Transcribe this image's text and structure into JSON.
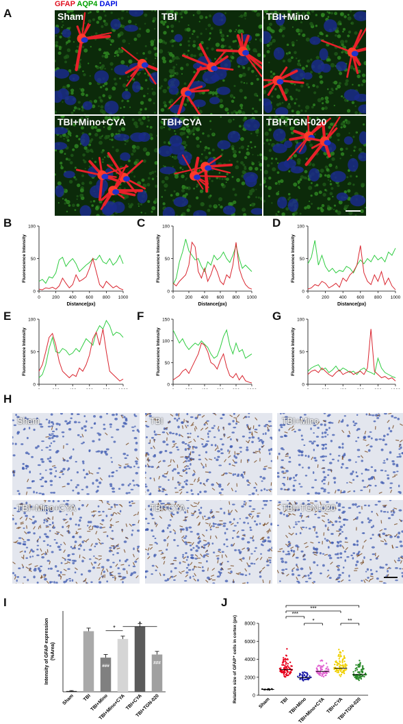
{
  "panel_letters": {
    "A": "A",
    "B": "B",
    "C": "C",
    "D": "D",
    "E": "E",
    "F": "F",
    "G": "G",
    "H": "H",
    "I": "I",
    "J": "J"
  },
  "legend": {
    "gfap": "GFAP",
    "aqp4": "AQP4",
    "dapi": "DAPI",
    "gfap_color": "#e01020",
    "aqp4_color": "#00a000",
    "dapi_color": "#0010e0"
  },
  "if_labels": [
    "Sham",
    "TBI",
    "TBI+Mino",
    "TBI+Mino+CYA",
    "TBI+CYA",
    "TBI+TGN-020"
  ],
  "ihc_labels": [
    "Sham",
    "TBI",
    "TBI+Mino",
    "TBI+Mino+CYA",
    "TBI+CYA",
    "TBI+TGN-020"
  ],
  "line_plot_common": {
    "ylabel": "Fluorescence Intensity",
    "xlabel": "Distance(px)",
    "xticks": [
      "0",
      "200",
      "400",
      "600",
      "800",
      "1000"
    ]
  },
  "chart_data": [
    {
      "panel": "B",
      "type": "line",
      "xlabel": "Distance(px)",
      "ylabel": "Fluorescence Intensity",
      "xlim": [
        0,
        1000
      ],
      "ylim": [
        0,
        100
      ],
      "yticks": [
        "0",
        "50",
        "100"
      ],
      "x": [
        0,
        40,
        80,
        120,
        160,
        200,
        240,
        280,
        320,
        360,
        400,
        440,
        480,
        520,
        560,
        600,
        640,
        680,
        720,
        760,
        800,
        840,
        880,
        920,
        960,
        1000
      ],
      "series": [
        {
          "color": "#2ecc40",
          "values": [
            15,
            18,
            12,
            22,
            20,
            28,
            48,
            52,
            38,
            45,
            50,
            42,
            30,
            35,
            40,
            44,
            50,
            48,
            55,
            45,
            42,
            50,
            40,
            45,
            55,
            42
          ]
        },
        {
          "color": "#d9232d",
          "values": [
            3,
            2,
            5,
            4,
            6,
            3,
            8,
            20,
            12,
            5,
            10,
            25,
            15,
            18,
            22,
            35,
            50,
            30,
            10,
            5,
            15,
            10,
            5,
            8,
            4,
            2
          ]
        }
      ]
    },
    {
      "panel": "C",
      "type": "line",
      "xlabel": "Distance(px)",
      "ylabel": "Fluorescence Intensity",
      "xlim": [
        0,
        1000
      ],
      "ylim": [
        0,
        100
      ],
      "yticks": [
        "0",
        "50",
        "100"
      ],
      "x": [
        0,
        40,
        80,
        120,
        160,
        200,
        240,
        280,
        320,
        360,
        400,
        440,
        480,
        520,
        560,
        600,
        640,
        680,
        720,
        760,
        800,
        840,
        880,
        920,
        960,
        1000
      ],
      "series": [
        {
          "color": "#2ecc40",
          "values": [
            10,
            20,
            45,
            60,
            80,
            62,
            55,
            48,
            50,
            38,
            30,
            45,
            40,
            55,
            48,
            52,
            60,
            50,
            44,
            55,
            70,
            50,
            35,
            40,
            35,
            30
          ]
        },
        {
          "color": "#d9232d",
          "values": [
            12,
            8,
            15,
            20,
            25,
            40,
            75,
            68,
            30,
            20,
            35,
            15,
            25,
            40,
            30,
            15,
            10,
            25,
            20,
            40,
            75,
            35,
            20,
            10,
            5,
            3
          ]
        }
      ]
    },
    {
      "panel": "D",
      "type": "line",
      "xlabel": "Distance(px)",
      "ylabel": "Fluorescence Intensity",
      "xlim": [
        0,
        1000
      ],
      "ylim": [
        0,
        100
      ],
      "yticks": [
        "0",
        "50",
        "100"
      ],
      "x": [
        0,
        40,
        80,
        120,
        160,
        200,
        240,
        280,
        320,
        360,
        400,
        440,
        480,
        520,
        560,
        600,
        640,
        680,
        720,
        760,
        800,
        840,
        880,
        920,
        960,
        1000
      ],
      "series": [
        {
          "color": "#2ecc40",
          "values": [
            42,
            52,
            78,
            40,
            55,
            38,
            30,
            35,
            28,
            32,
            30,
            38,
            35,
            28,
            40,
            48,
            42,
            50,
            45,
            55,
            48,
            52,
            45,
            60,
            55,
            66
          ]
        },
        {
          "color": "#d9232d",
          "values": [
            3,
            5,
            10,
            8,
            15,
            12,
            5,
            8,
            12,
            6,
            20,
            15,
            25,
            30,
            40,
            70,
            28,
            15,
            10,
            25,
            15,
            30,
            10,
            20,
            8,
            2
          ]
        }
      ]
    },
    {
      "panel": "E",
      "type": "line",
      "xlabel": "Distance(px)",
      "ylabel": "Fluorescence Intensity",
      "xlim": [
        0,
        1000
      ],
      "ylim": [
        0,
        100
      ],
      "yticks": [
        "0",
        "50",
        "100"
      ],
      "x": [
        0,
        40,
        80,
        120,
        160,
        200,
        240,
        280,
        320,
        360,
        400,
        440,
        480,
        520,
        560,
        600,
        640,
        680,
        720,
        760,
        800,
        840,
        880,
        920,
        960,
        1000
      ],
      "series": [
        {
          "color": "#2ecc40",
          "values": [
            10,
            15,
            30,
            55,
            72,
            50,
            48,
            55,
            52,
            45,
            48,
            55,
            50,
            60,
            70,
            65,
            60,
            80,
            90,
            85,
            98,
            90,
            75,
            80,
            78,
            72
          ]
        },
        {
          "color": "#d9232d",
          "values": [
            20,
            30,
            50,
            72,
            78,
            60,
            35,
            20,
            15,
            10,
            15,
            12,
            25,
            20,
            30,
            45,
            70,
            80,
            60,
            85,
            50,
            20,
            15,
            10,
            5,
            8
          ]
        }
      ]
    },
    {
      "panel": "F",
      "type": "line",
      "xlabel": "Distance(px)",
      "ylabel": "Fluorescence Intensity",
      "xlim": [
        0,
        1000
      ],
      "ylim": [
        0,
        150
      ],
      "yticks": [
        "0",
        "50",
        "100",
        "150"
      ],
      "x": [
        0,
        40,
        80,
        120,
        160,
        200,
        240,
        280,
        320,
        360,
        400,
        440,
        480,
        520,
        560,
        600,
        640,
        680,
        720,
        760,
        800,
        840,
        880,
        920,
        960,
        1000
      ],
      "series": [
        {
          "color": "#2ecc40",
          "values": [
            125,
            110,
            95,
            105,
            90,
            80,
            88,
            95,
            90,
            100,
            92,
            85,
            70,
            60,
            65,
            85,
            110,
            125,
            90,
            70,
            95,
            75,
            80,
            60,
            65,
            70
          ]
        },
        {
          "color": "#d9232d",
          "values": [
            10,
            15,
            20,
            30,
            35,
            25,
            40,
            55,
            70,
            95,
            90,
            75,
            50,
            45,
            35,
            55,
            70,
            40,
            20,
            15,
            25,
            10,
            20,
            8,
            5,
            3
          ]
        }
      ]
    },
    {
      "panel": "G",
      "type": "line",
      "xlabel": "Distance(px)",
      "ylabel": "Fluorescence Intensity",
      "xlim": [
        0,
        1000
      ],
      "ylim": [
        0,
        100
      ],
      "yticks": [
        "0",
        "50",
        "100"
      ],
      "x": [
        0,
        40,
        80,
        120,
        160,
        200,
        240,
        280,
        320,
        360,
        400,
        440,
        480,
        520,
        560,
        600,
        640,
        680,
        720,
        760,
        800,
        840,
        880,
        920,
        960,
        1000
      ],
      "series": [
        {
          "color": "#2ecc40",
          "values": [
            20,
            25,
            28,
            30,
            22,
            25,
            18,
            22,
            28,
            20,
            25,
            22,
            18,
            20,
            15,
            22,
            25,
            20,
            18,
            15,
            40,
            25,
            18,
            15,
            12,
            10
          ]
        },
        {
          "color": "#d9232d",
          "values": [
            15,
            20,
            22,
            18,
            25,
            20,
            15,
            12,
            18,
            22,
            15,
            18,
            20,
            15,
            18,
            20,
            15,
            25,
            85,
            20,
            15,
            10,
            12,
            8,
            10,
            5
          ]
        }
      ]
    },
    {
      "panel": "I",
      "type": "bar",
      "ylabel": "Intensity of GFAP expression\n(%Area)",
      "categories": [
        "Sham",
        "TBI",
        "TBI+Mino",
        "TBI+Mino+CYA",
        "TBI+CYA",
        "TBI+TGN-020"
      ],
      "values": [
        0.05,
        3.9,
        2.2,
        3.4,
        4.2,
        2.4
      ],
      "errors": [
        0.03,
        0.2,
        0.2,
        0.18,
        0.18,
        0.2
      ],
      "colors": [
        "#222222",
        "#a9a9a9",
        "#808080",
        "#d5d5d5",
        "#5b5b5b",
        "#a0a0a0"
      ],
      "ylim": [
        0,
        5.2
      ],
      "bar_labels": [
        "",
        "",
        "###",
        "",
        "",
        "###"
      ],
      "brackets": [
        {
          "from": 2,
          "to": 3,
          "label": "*"
        },
        {
          "from": 3,
          "to": 5,
          "label": "*"
        }
      ]
    },
    {
      "panel": "J",
      "type": "scatter",
      "ylabel": "Relative size of GFAP⁺ cells in cortex (px)",
      "categories": [
        "Sham",
        "TBI",
        "TBI+Mino",
        "TBI+Mino+CYA",
        "TBI+CYA",
        "TBI+TGN-020"
      ],
      "ylim": [
        0,
        8000
      ],
      "yticks": [
        "0",
        "2000",
        "4000",
        "6000",
        "8000"
      ],
      "means": [
        650,
        2850,
        1950,
        2650,
        3000,
        2300
      ],
      "spreads": [
        120,
        1800,
        800,
        1500,
        2000,
        1400
      ],
      "counts": [
        12,
        85,
        45,
        65,
        85,
        90
      ],
      "colors": [
        "#111111",
        "#e8001c",
        "#1c1ca8",
        "#e060d0",
        "#f0d000",
        "#2a8a2a"
      ],
      "brackets": [
        {
          "from": 1,
          "to": 5,
          "label": "*"
        },
        {
          "from": 1,
          "to": 4,
          "label": "***"
        },
        {
          "from": 1,
          "to": 2,
          "label": "***"
        },
        {
          "from": 2,
          "to": 3,
          "label": "*"
        },
        {
          "from": 4,
          "to": 5,
          "label": "**"
        }
      ]
    }
  ]
}
